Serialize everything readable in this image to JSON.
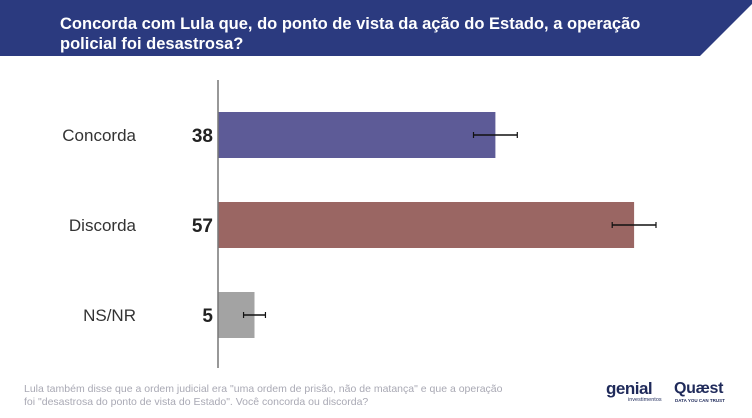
{
  "title": "Concorda com Lula que, do ponto de vista da ação do Estado, a operação policial foi desastrosa?",
  "colors": {
    "header_bg": "#2b3a7f",
    "concorda": "#5d5b97",
    "discorda": "#9a6663",
    "nsnr": "#a3a3a3",
    "axis": "#777777",
    "label": "#333333"
  },
  "chart_data": {
    "type": "bar",
    "orientation": "horizontal",
    "categories": [
      "Concorda",
      "Discorda",
      "NS/NR"
    ],
    "values": [
      38,
      57,
      5
    ],
    "data_labels": [
      "38",
      "57",
      "5"
    ],
    "error_margin": [
      3,
      3,
      1.5
    ],
    "xlim": [
      0,
      70
    ],
    "grid": false,
    "legend": "none"
  },
  "footnote": "Lula também disse que a ordem judicial era \"uma ordem de prisão, não de matança\" e que a operação foi \"desastrosa do ponto de vista do Estado\". Você concorda ou discorda?",
  "logos": {
    "genial": "genial",
    "genial_sub": "investimentos",
    "quaest": "Quæst",
    "quaest_sub": "DATA YOU CAN TRUST"
  }
}
